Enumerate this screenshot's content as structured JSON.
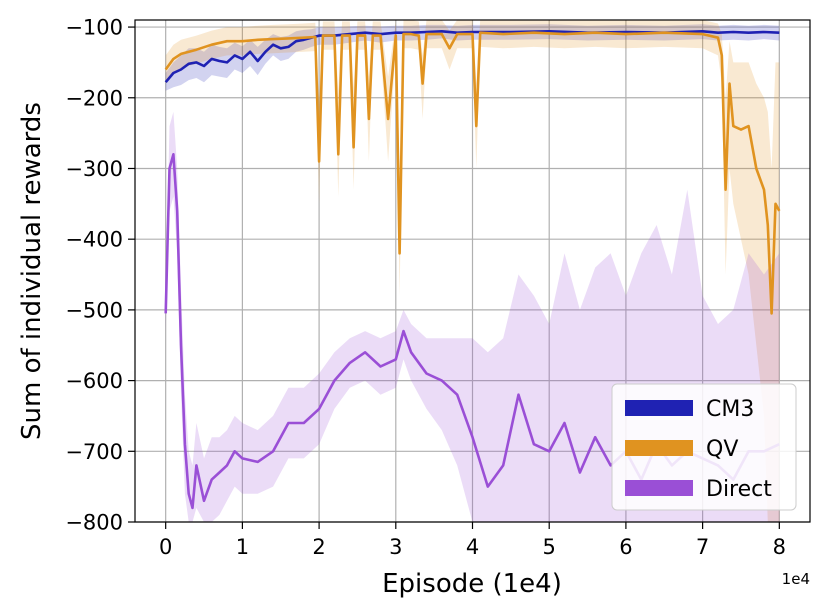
{
  "chart_data": {
    "type": "line",
    "xlabel": "Episode (1e4)",
    "ylabel": "Sum of individual rewards",
    "x_offset_label": "1e4",
    "xlim": [
      -0.4,
      8.4
    ],
    "ylim": [
      -800,
      -90
    ],
    "xticks": [
      0,
      1,
      2,
      3,
      4,
      5,
      6,
      7,
      8
    ],
    "xtick_labels": [
      "0",
      "1",
      "2",
      "3",
      "4",
      "5",
      "6",
      "7",
      "8"
    ],
    "yticks": [
      -800,
      -700,
      -600,
      -500,
      -400,
      -300,
      -200,
      -100
    ],
    "ytick_labels": [
      "−800",
      "−700",
      "−600",
      "−500",
      "−400",
      "−300",
      "−200",
      "−100"
    ],
    "grid": true,
    "legend_position": "bottom-right",
    "series": [
      {
        "name": "CM3",
        "color": "#1f22b3",
        "band_color": "#1f22b3",
        "x": [
          0,
          0.1,
          0.2,
          0.3,
          0.4,
          0.5,
          0.6,
          0.7,
          0.8,
          0.9,
          1.0,
          1.1,
          1.2,
          1.3,
          1.4,
          1.5,
          1.6,
          1.7,
          1.8,
          1.9,
          2.0,
          2.2,
          2.4,
          2.6,
          2.8,
          3.0,
          3.2,
          3.4,
          3.6,
          3.8,
          4.0,
          4.5,
          5.0,
          5.5,
          6.0,
          6.5,
          7.0,
          7.2,
          7.4,
          7.6,
          7.8,
          8.0
        ],
        "y": [
          -178,
          -165,
          -160,
          -152,
          -150,
          -155,
          -145,
          -148,
          -150,
          -140,
          -145,
          -135,
          -148,
          -135,
          -125,
          -130,
          -128,
          -120,
          -118,
          -115,
          -112,
          -112,
          -110,
          -108,
          -110,
          -108,
          -108,
          -107,
          -106,
          -108,
          -107,
          -107,
          -106,
          -108,
          -107,
          -108,
          -106,
          -108,
          -107,
          -108,
          -107,
          -108
        ],
        "band_hi": [
          -165,
          -150,
          -140,
          -130,
          -130,
          -135,
          -125,
          -128,
          -130,
          -122,
          -127,
          -118,
          -128,
          -118,
          -110,
          -114,
          -112,
          -106,
          -104,
          -103,
          -100,
          -100,
          -99,
          -98,
          -99,
          -98,
          -98,
          -97,
          -97,
          -98,
          -97,
          -97,
          -96,
          -98,
          -97,
          -98,
          -96,
          -98,
          -97,
          -98,
          -97,
          -98
        ],
        "band_lo": [
          -190,
          -185,
          -182,
          -175,
          -172,
          -178,
          -168,
          -170,
          -172,
          -160,
          -165,
          -155,
          -168,
          -152,
          -140,
          -148,
          -145,
          -135,
          -132,
          -128,
          -125,
          -125,
          -122,
          -119,
          -122,
          -119,
          -119,
          -118,
          -116,
          -119,
          -118,
          -118,
          -117,
          -119,
          -118,
          -119,
          -117,
          -119,
          -118,
          -119,
          -117,
          -119
        ]
      },
      {
        "name": "QV",
        "color": "#e09320",
        "band_color": "#e09320",
        "x": [
          0,
          0.1,
          0.2,
          0.4,
          0.6,
          0.8,
          1.0,
          1.2,
          1.4,
          1.6,
          1.8,
          1.95,
          2.0,
          2.05,
          2.2,
          2.25,
          2.3,
          2.4,
          2.45,
          2.5,
          2.6,
          2.65,
          2.7,
          2.8,
          2.9,
          3.0,
          3.05,
          3.1,
          3.2,
          3.3,
          3.35,
          3.4,
          3.6,
          3.7,
          3.8,
          4.0,
          4.05,
          4.1,
          4.4,
          4.8,
          5.2,
          5.6,
          6.0,
          6.5,
          7.0,
          7.2,
          7.25,
          7.3,
          7.35,
          7.4,
          7.5,
          7.6,
          7.7,
          7.8,
          7.85,
          7.9,
          7.95,
          8.0
        ],
        "y": [
          -160,
          -145,
          -138,
          -132,
          -125,
          -120,
          -120,
          -118,
          -117,
          -116,
          -115,
          -114,
          -290,
          -112,
          -112,
          -280,
          -112,
          -112,
          -270,
          -112,
          -112,
          -230,
          -112,
          -112,
          -230,
          -112,
          -420,
          -110,
          -110,
          -112,
          -180,
          -110,
          -110,
          -130,
          -110,
          -110,
          -240,
          -108,
          -110,
          -108,
          -110,
          -108,
          -110,
          -108,
          -110,
          -115,
          -140,
          -330,
          -180,
          -240,
          -245,
          -240,
          -300,
          -330,
          -380,
          -505,
          -350,
          -360
        ],
        "band_hi": [
          -140,
          -125,
          -118,
          -112,
          -105,
          -100,
          -100,
          -98,
          -97,
          -96,
          -95,
          -94,
          -200,
          -92,
          -92,
          -190,
          -92,
          -92,
          -185,
          -92,
          -92,
          -170,
          -92,
          -92,
          -170,
          -92,
          -300,
          -90,
          -90,
          -92,
          -140,
          -90,
          -90,
          -105,
          -90,
          -90,
          -180,
          -90,
          -90,
          -90,
          -90,
          -90,
          -90,
          -90,
          -90,
          -95,
          -110,
          -200,
          -120,
          -150,
          -150,
          -150,
          -180,
          -200,
          -220,
          -300,
          -150,
          -150
        ],
        "band_lo": [
          -180,
          -165,
          -158,
          -152,
          -145,
          -140,
          -140,
          -138,
          -137,
          -136,
          -135,
          -134,
          -350,
          -132,
          -132,
          -340,
          -132,
          -132,
          -330,
          -132,
          -132,
          -290,
          -132,
          -132,
          -290,
          -132,
          -480,
          -130,
          -130,
          -132,
          -230,
          -130,
          -130,
          -160,
          -130,
          -130,
          -300,
          -128,
          -130,
          -128,
          -130,
          -128,
          -130,
          -128,
          -130,
          -140,
          -180,
          -450,
          -300,
          -350,
          -400,
          -450,
          -550,
          -650,
          -800,
          -800,
          -800,
          -800
        ]
      },
      {
        "name": "Direct",
        "color": "#9a4fd6",
        "band_color": "#9a4fd6",
        "x": [
          0,
          0.05,
          0.1,
          0.15,
          0.2,
          0.25,
          0.3,
          0.35,
          0.4,
          0.5,
          0.6,
          0.7,
          0.8,
          0.9,
          1.0,
          1.2,
          1.4,
          1.6,
          1.8,
          2.0,
          2.2,
          2.4,
          2.6,
          2.8,
          3.0,
          3.1,
          3.2,
          3.4,
          3.6,
          3.8,
          4.0,
          4.2,
          4.4,
          4.6,
          4.8,
          5.0,
          5.2,
          5.4,
          5.6,
          5.8,
          6.0,
          6.2,
          6.4,
          6.6,
          6.8,
          7.0,
          7.2,
          7.4,
          7.6,
          7.8,
          8.0
        ],
        "y": [
          -505,
          -300,
          -280,
          -360,
          -550,
          -690,
          -760,
          -780,
          -720,
          -770,
          -740,
          -730,
          -720,
          -700,
          -710,
          -715,
          -700,
          -660,
          -660,
          -640,
          -600,
          -575,
          -560,
          -580,
          -570,
          -530,
          -560,
          -590,
          -600,
          -620,
          -680,
          -750,
          -720,
          -620,
          -690,
          -700,
          -660,
          -730,
          -680,
          -720,
          -700,
          -740,
          -690,
          -720,
          -700,
          -710,
          -720,
          -740,
          -700,
          -700,
          -690
        ],
        "band_hi": [
          -480,
          -240,
          -220,
          -300,
          -470,
          -620,
          -700,
          -720,
          -660,
          -710,
          -680,
          -680,
          -670,
          -650,
          -660,
          -670,
          -650,
          -610,
          -610,
          -590,
          -560,
          -540,
          -530,
          -540,
          -530,
          -500,
          -520,
          -540,
          -540,
          -540,
          -540,
          -560,
          -540,
          -450,
          -480,
          -520,
          -420,
          -500,
          -440,
          -420,
          -480,
          -420,
          -380,
          -450,
          -330,
          -480,
          -520,
          -500,
          -420,
          -450,
          -420
        ],
        "band_lo": [
          -530,
          -360,
          -340,
          -420,
          -620,
          -760,
          -800,
          -800,
          -780,
          -800,
          -800,
          -790,
          -770,
          -750,
          -760,
          -760,
          -750,
          -710,
          -710,
          -690,
          -640,
          -610,
          -600,
          -620,
          -610,
          -570,
          -600,
          -640,
          -670,
          -720,
          -800,
          -800,
          -800,
          -800,
          -800,
          -800,
          -800,
          -800,
          -800,
          -800,
          -800,
          -800,
          -800,
          -800,
          -800,
          -800,
          -800,
          -800,
          -800,
          -800,
          -800
        ]
      }
    ]
  }
}
